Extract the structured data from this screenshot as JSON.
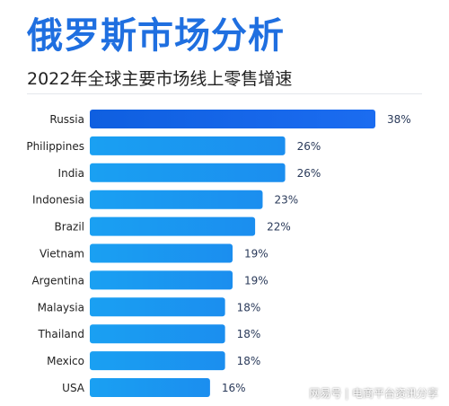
{
  "header": {
    "title": "俄罗斯市场分析",
    "subtitle": "2022年全球主要市场线上零售增速"
  },
  "colors": {
    "title": "#1f6fe0",
    "bar_primary": "#1565e6",
    "bar_secondary": "#1e9bf0",
    "value_label": "#2a3a5a",
    "category_label": "#222222"
  },
  "chart_data": {
    "type": "bar",
    "orientation": "horizontal",
    "categories": [
      "Russia",
      "Philippines",
      "India",
      "Indonesia",
      "Brazil",
      "Vietnam",
      "Argentina",
      "Malaysia",
      "Thailand",
      "Mexico",
      "USA"
    ],
    "values": [
      38,
      26,
      26,
      23,
      22,
      19,
      19,
      18,
      18,
      18,
      16
    ],
    "value_labels": [
      "38%",
      "26%",
      "26%",
      "23%",
      "22%",
      "19%",
      "19%",
      "18%",
      "18%",
      "18%",
      "16%"
    ],
    "title": "2022年全球主要市场线上零售增速",
    "xlabel": "",
    "ylabel": "",
    "xlim": [
      0,
      38
    ],
    "grid": false,
    "legend": "none"
  },
  "watermark": "网易号 | 电商平台资讯分享"
}
